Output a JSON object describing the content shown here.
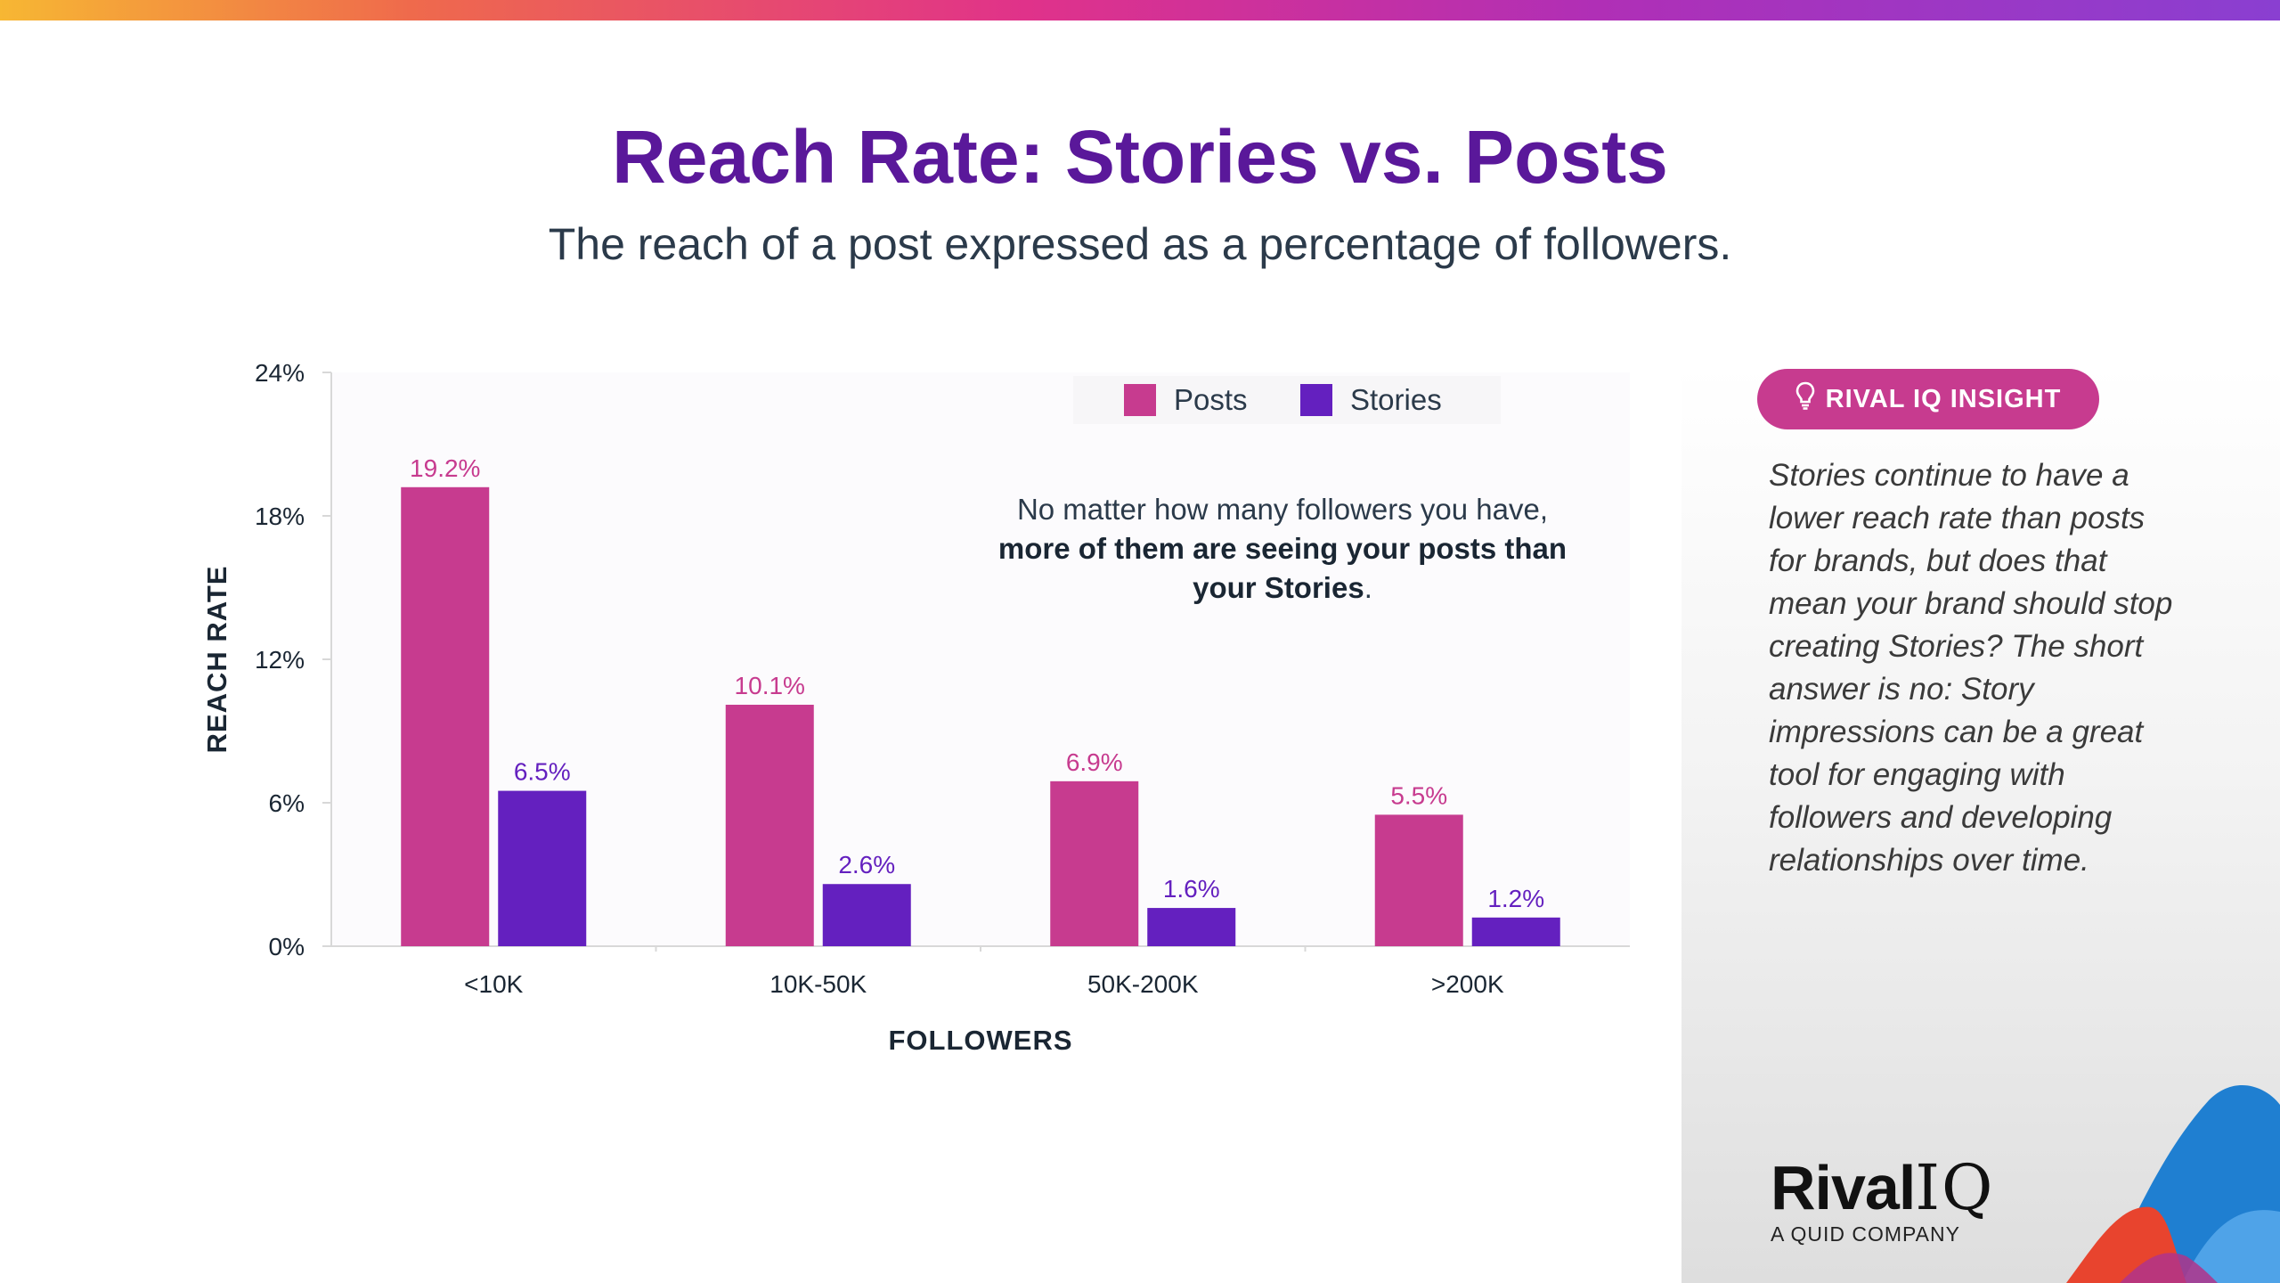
{
  "title": "Reach Rate: Stories vs. Posts",
  "subtitle": "The reach of a post expressed as a percentage of followers.",
  "note": {
    "line1": "No matter how many followers you have,",
    "bold": "more of them are seeing your posts than your Stories",
    "end": "."
  },
  "insight": {
    "label": "RIVAL IQ INSIGHT",
    "text": "Stories continue to have a lower reach rate than posts for brands, but does that mean your brand should stop creating Stories? The short answer is no: Story impressions can be a great tool for engaging with followers and developing relationships over time."
  },
  "brand": {
    "name_part1": "Rival",
    "name_part2": "IQ",
    "tagline": "A QUID COMPANY"
  },
  "icons": {
    "insight": "lightbulb-icon"
  },
  "colors": {
    "posts": "#c73b8f",
    "stories": "#6420bf",
    "title": "#5a189a",
    "axis_text": "#1a2633"
  },
  "chart_data": {
    "type": "bar",
    "title": "Reach Rate: Stories vs. Posts",
    "xlabel": "FOLLOWERS",
    "ylabel": "REACH RATE",
    "categories": [
      "<10K",
      "10K-50K",
      "50K-200K",
      ">200K"
    ],
    "series": [
      {
        "name": "Posts",
        "values": [
          19.2,
          10.1,
          6.9,
          5.5
        ],
        "labels": [
          "19.2%",
          "10.1%",
          "6.9%",
          "5.5%"
        ]
      },
      {
        "name": "Stories",
        "values": [
          6.5,
          2.6,
          1.6,
          1.2
        ],
        "labels": [
          "6.5%",
          "2.6%",
          "1.6%",
          "1.2%"
        ]
      }
    ],
    "ylim": [
      0,
      24
    ],
    "yticks": [
      0,
      6,
      12,
      18,
      24
    ],
    "ytick_labels": [
      "0%",
      "6%",
      "12%",
      "18%",
      "24%"
    ],
    "legend": "top-center",
    "grid": false
  }
}
